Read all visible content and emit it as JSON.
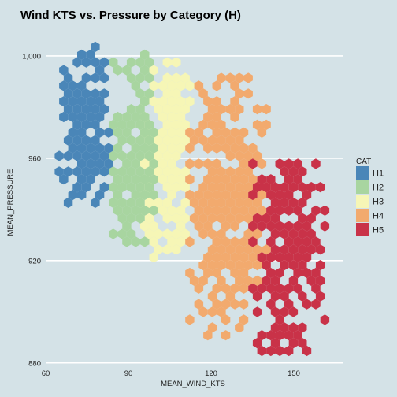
{
  "chart_data": {
    "type": "hexbin",
    "title": "Wind KTS vs. Pressure by Category (H)",
    "xlabel": "MEAN_WIND_KTS",
    "ylabel": "MEAN_PRESSURE",
    "xlim": [
      60,
      168
    ],
    "ylim": [
      879,
      1012
    ],
    "x_ticks": [
      60,
      90,
      120,
      150
    ],
    "y_ticks": [
      880,
      920,
      960,
      1000
    ],
    "y_tick_labels": [
      "880",
      "920",
      "960",
      "1,000"
    ],
    "grid": "horizontal-major",
    "legend": {
      "title": "CAT",
      "position": "right",
      "entries": [
        {
          "name": "H1",
          "color": "#4a86b8"
        },
        {
          "name": "H2",
          "color": "#a8d5a0"
        },
        {
          "name": "H3",
          "color": "#f6f6b6"
        },
        {
          "name": "H4",
          "color": "#f2aa6e"
        },
        {
          "name": "H5",
          "color": "#c93248"
        }
      ]
    },
    "series": [
      {
        "name": "H1",
        "x_range": [
          65,
          83
        ],
        "y_range": [
          941,
          1006
        ]
      },
      {
        "name": "H2",
        "x_range": [
          84,
          100
        ],
        "y_range": [
          925,
          1000
        ]
      },
      {
        "name": "H3",
        "x_range": [
          95,
          113
        ],
        "y_range": [
          921,
          997
        ]
      },
      {
        "name": "H4",
        "x_range": [
          112,
          140
        ],
        "y_range": [
          890,
          991
        ]
      },
      {
        "name": "H5",
        "x_range": [
          135,
          161
        ],
        "y_range": [
          883,
          960
        ]
      }
    ]
  }
}
